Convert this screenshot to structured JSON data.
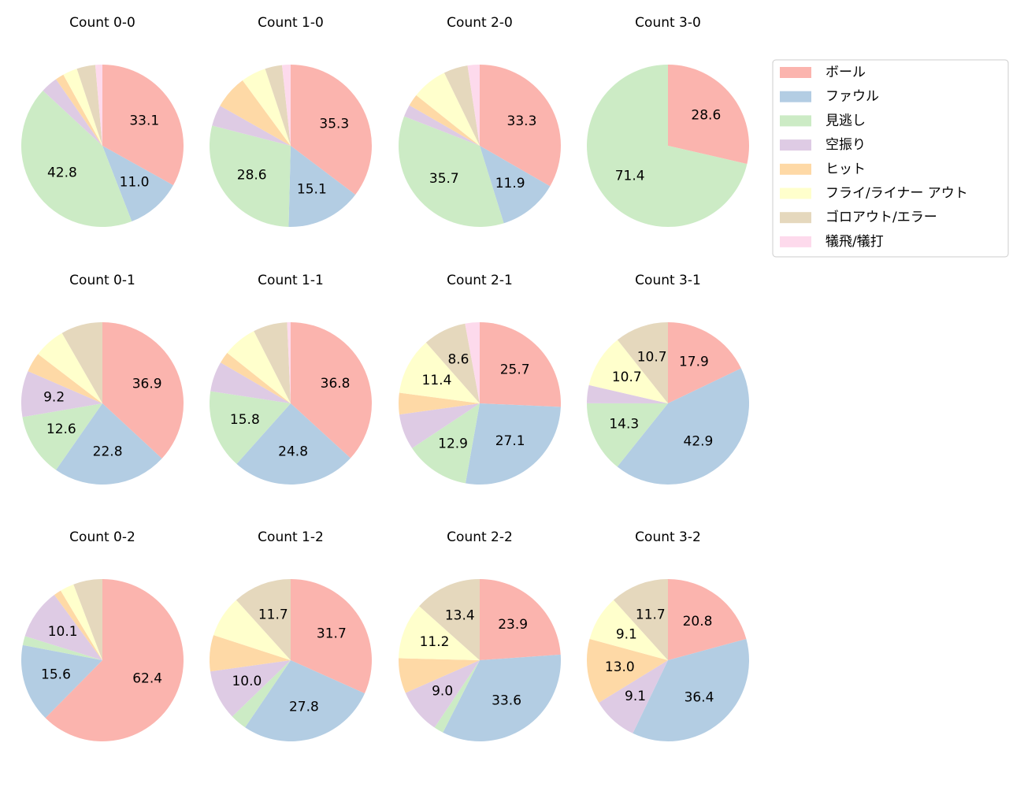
{
  "chart_data": [
    {
      "type": "pie",
      "title": "Count 0-0",
      "categories": [
        "ボール",
        "ファウル",
        "見逃し",
        "空振り",
        "ヒット",
        "フライ/ライナー アウト",
        "ゴロアウト/エラー",
        "犠飛/犠打"
      ],
      "colors": [
        "#fbb4ae",
        "#b3cde3",
        "#ccebc5",
        "#decbe4",
        "#fed9a6",
        "#ffffcc",
        "#e5d8bd",
        "#fddaec"
      ],
      "values": [
        33.1,
        11.0,
        42.8,
        3.4,
        1.7,
        2.9,
        3.7,
        1.4
      ],
      "value_labels": [
        "33.1",
        "11.0",
        "42.8",
        null,
        null,
        null,
        null,
        null
      ]
    },
    {
      "type": "pie",
      "title": "Count 1-0",
      "values": [
        35.3,
        15.1,
        28.6,
        4.2,
        6.7,
        5.0,
        3.4,
        1.7
      ],
      "value_labels": [
        "35.3",
        "15.1",
        "28.6",
        null,
        null,
        null,
        null,
        null
      ]
    },
    {
      "type": "pie",
      "title": "Count 2-0",
      "values": [
        33.3,
        11.9,
        35.7,
        2.4,
        2.4,
        7.1,
        4.8,
        2.4
      ],
      "value_labels": [
        "33.3",
        "11.9",
        "35.7",
        null,
        null,
        null,
        null,
        null
      ]
    },
    {
      "type": "pie",
      "title": "Count 3-0",
      "values": [
        28.6,
        0,
        71.4,
        0,
        0,
        0,
        0,
        0
      ],
      "value_labels": [
        "28.6",
        null,
        "71.4",
        null,
        null,
        null,
        null,
        null
      ]
    },
    {
      "type": "pie",
      "title": "Count 0-1",
      "values": [
        36.9,
        22.8,
        12.6,
        9.2,
        3.9,
        6.3,
        8.3,
        0
      ],
      "value_labels": [
        "36.9",
        "22.8",
        "12.6",
        "9.2",
        null,
        null,
        null,
        null
      ]
    },
    {
      "type": "pie",
      "title": "Count 1-1",
      "values": [
        36.8,
        24.8,
        15.8,
        6.0,
        2.3,
        6.8,
        6.8,
        0.7
      ],
      "value_labels": [
        "36.8",
        "24.8",
        "15.8",
        null,
        null,
        null,
        null,
        null
      ]
    },
    {
      "type": "pie",
      "title": "Count 2-1",
      "values": [
        25.7,
        27.1,
        12.9,
        7.1,
        4.3,
        11.4,
        8.6,
        2.9
      ],
      "value_labels": [
        "25.7",
        "27.1",
        "12.9",
        null,
        null,
        "11.4",
        "8.6",
        null
      ]
    },
    {
      "type": "pie",
      "title": "Count 3-1",
      "values": [
        17.9,
        42.9,
        14.3,
        3.6,
        0,
        10.7,
        10.7,
        0
      ],
      "value_labels": [
        "17.9",
        "42.9",
        "14.3",
        null,
        null,
        "10.7",
        "10.7",
        null
      ]
    },
    {
      "type": "pie",
      "title": "Count 0-2",
      "values": [
        62.4,
        15.6,
        1.8,
        10.1,
        1.5,
        2.8,
        5.8,
        0
      ],
      "value_labels": [
        "62.4",
        "15.6",
        null,
        "10.1",
        null,
        null,
        null,
        null
      ]
    },
    {
      "type": "pie",
      "title": "Count 1-2",
      "values": [
        31.7,
        27.8,
        3.3,
        10.0,
        7.2,
        8.3,
        11.7,
        0
      ],
      "value_labels": [
        "31.7",
        "27.8",
        null,
        "10.0",
        null,
        null,
        "11.7",
        null
      ]
    },
    {
      "type": "pie",
      "title": "Count 2-2",
      "values": [
        23.9,
        33.6,
        1.9,
        9.0,
        7.0,
        11.2,
        13.4,
        0
      ],
      "value_labels": [
        "23.9",
        "33.6",
        null,
        "9.0",
        null,
        "11.2",
        "13.4",
        null
      ]
    },
    {
      "type": "pie",
      "title": "Count 3-2",
      "values": [
        20.8,
        36.4,
        0,
        9.1,
        13.0,
        9.1,
        11.7,
        0
      ],
      "value_labels": [
        "20.8",
        "36.4",
        null,
        "9.1",
        "13.0",
        "9.1",
        "11.7",
        null
      ]
    }
  ]
}
